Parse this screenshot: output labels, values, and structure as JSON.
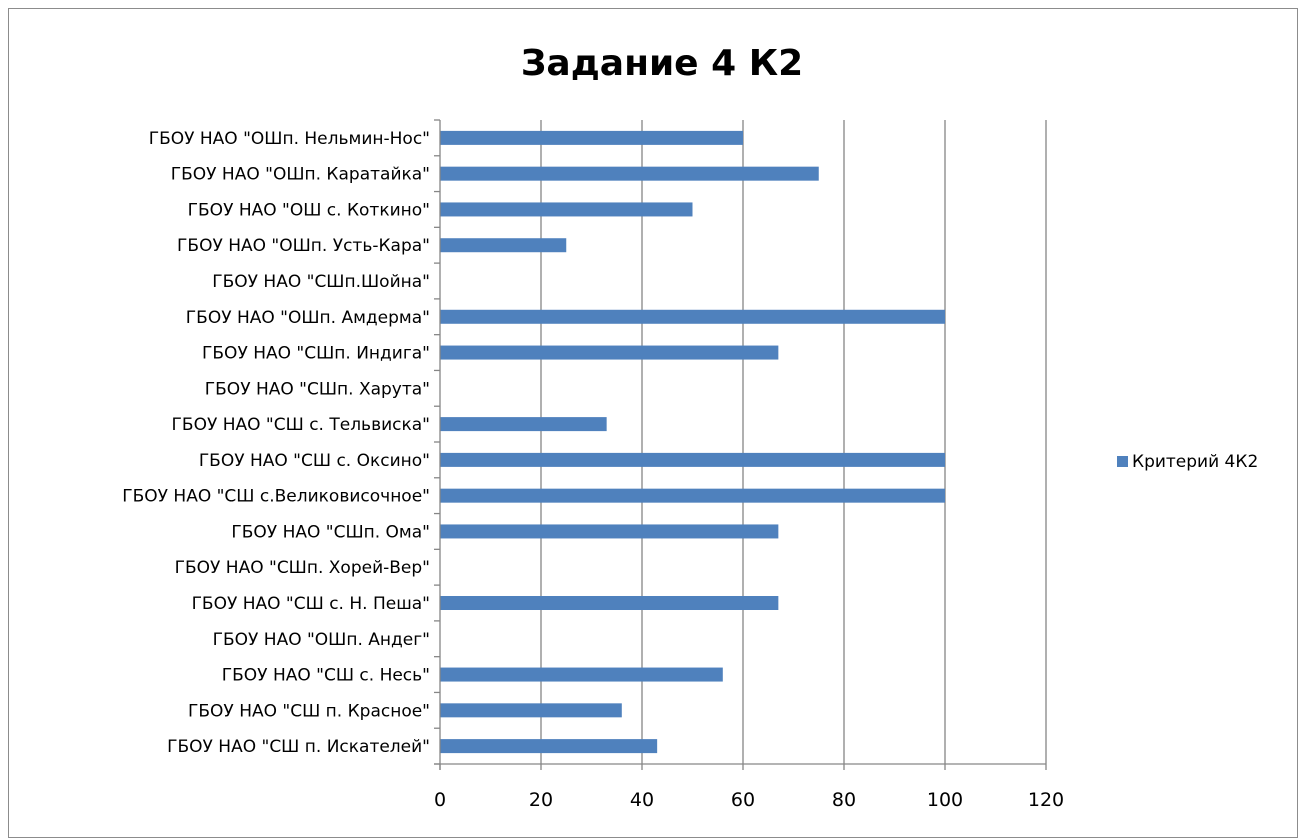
{
  "chart_data": {
    "type": "bar",
    "orientation": "horizontal",
    "title": "Задание 4 К2",
    "xlabel": "",
    "ylabel": "",
    "xlim": [
      0,
      120
    ],
    "x_ticks": [
      0,
      20,
      40,
      60,
      80,
      100,
      120
    ],
    "grid": "vertical",
    "legend_position": "right",
    "categories": [
      "ГБОУ НАО \"ОШп. Нельмин-Нос\"",
      "ГБОУ НАО \"ОШп. Каратайка\"",
      "ГБОУ НАО \"ОШ с. Коткино\"",
      "ГБОУ НАО \"ОШп. Усть-Кара\"",
      "ГБОУ НАО \"СШп.Шойна\"",
      "ГБОУ НАО \"ОШп. Амдерма\"",
      "ГБОУ НАО \"СШп. Индига\"",
      "ГБОУ НАО \"СШп. Харута\"",
      "ГБОУ НАО \"СШ с. Тельвиска\"",
      "ГБОУ НАО \"СШ с. Оксино\"",
      "ГБОУ НАО \"СШ с.Великовисочное\"",
      "ГБОУ НАО \"СШп. Ома\"",
      "ГБОУ НАО \"СШп. Хорей-Вер\"",
      "ГБОУ НАО \"СШ с. Н. Пеша\"",
      "ГБОУ НАО \"ОШп. Андег\"",
      "ГБОУ НАО \"СШ с. Несь\"",
      "ГБОУ НАО \"СШ п. Красное\"",
      "ГБОУ НАО \"СШ п. Искателей\""
    ],
    "series": [
      {
        "name": "Критерий 4К2",
        "color": "#4f81bd",
        "values": [
          60,
          75,
          50,
          25,
          0,
          100,
          67,
          0,
          33,
          100,
          100,
          67,
          0,
          67,
          0,
          56,
          36,
          43
        ]
      }
    ]
  }
}
